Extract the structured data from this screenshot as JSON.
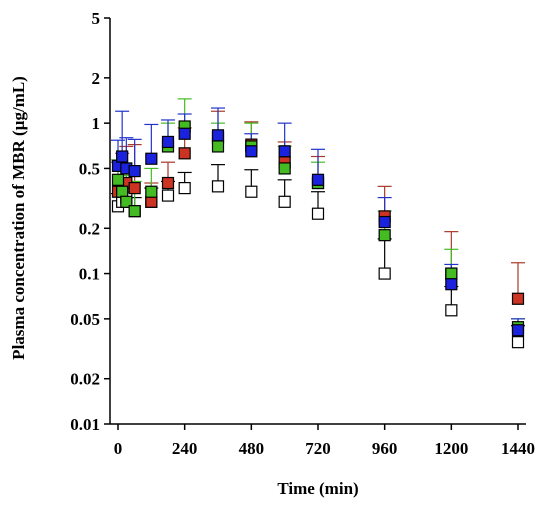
{
  "chart_data": {
    "type": "scatter",
    "title": "",
    "xlabel": "Time (min)",
    "ylabel": "Plasma concentration of  MBR (µg/mL)",
    "x_scale": "linear",
    "y_scale": "log",
    "xlim": [
      -40,
      1480
    ],
    "ylim": [
      0.01,
      5
    ],
    "x_ticks": [
      0,
      240,
      480,
      720,
      960,
      1200,
      1440
    ],
    "x_tick_labels": [
      "0",
      "240",
      "480",
      "720",
      "960",
      "1200",
      "1440"
    ],
    "y_ticks": [
      0.01,
      0.02,
      0.05,
      0.1,
      0.2,
      0.5,
      1,
      2,
      5
    ],
    "y_tick_labels": [
      "0.01",
      "0.02",
      "0.05",
      "0.1",
      "0.2",
      "0.5",
      "1",
      "2",
      "5"
    ],
    "grid": false,
    "legend": "none",
    "series": [
      {
        "color": "#ffffff",
        "edge_color": "#000000",
        "error_color": "#000000",
        "points": [
          {
            "x": 0,
            "y": 0.28,
            "err": 0.06
          },
          {
            "x": 15,
            "y": 0.3,
            "err": 0.07
          },
          {
            "x": 30,
            "y": 0.32,
            "err": 0.07
          },
          {
            "x": 60,
            "y": 0.26,
            "err": 0.06
          },
          {
            "x": 120,
            "y": 0.3,
            "err": 0.07
          },
          {
            "x": 180,
            "y": 0.33,
            "err": 0.08
          },
          {
            "x": 240,
            "y": 0.37,
            "err": 0.1
          },
          {
            "x": 360,
            "y": 0.38,
            "err": 0.15
          },
          {
            "x": 480,
            "y": 0.35,
            "err": 0.14
          },
          {
            "x": 600,
            "y": 0.3,
            "err": 0.12
          },
          {
            "x": 720,
            "y": 0.25,
            "err": 0.1
          },
          {
            "x": 960,
            "y": 0.1,
            "err": 0.07
          },
          {
            "x": 1200,
            "y": 0.057,
            "err": 0.025
          },
          {
            "x": 1440,
            "y": 0.035,
            "err": 0.01
          }
        ]
      },
      {
        "color": "#cc3322",
        "edge_color": "#000000",
        "error_color": "#a83a2a",
        "points": [
          {
            "x": 0,
            "y": 0.35,
            "err": 0.2
          },
          {
            "x": 15,
            "y": 0.38,
            "err": 0.25
          },
          {
            "x": 30,
            "y": 0.4,
            "err": 0.3
          },
          {
            "x": 60,
            "y": 0.37,
            "err": 0.35
          },
          {
            "x": 120,
            "y": 0.3,
            "err": 0.1
          },
          {
            "x": 180,
            "y": 0.4,
            "err": 0.15
          },
          {
            "x": 240,
            "y": 0.63,
            "err": 0.3
          },
          {
            "x": 360,
            "y": 0.8,
            "err": 0.4
          },
          {
            "x": 480,
            "y": 0.72,
            "err": 0.3
          },
          {
            "x": 600,
            "y": 0.55,
            "err": 0.2
          },
          {
            "x": 720,
            "y": 0.4,
            "err": 0.2
          },
          {
            "x": 960,
            "y": 0.24,
            "err": 0.14
          },
          {
            "x": 1200,
            "y": 0.1,
            "err": 0.09
          },
          {
            "x": 1440,
            "y": 0.068,
            "err": 0.05
          }
        ]
      },
      {
        "color": "#44bb22",
        "edge_color": "#000000",
        "error_color": "#44bb22",
        "points": [
          {
            "x": 0,
            "y": 0.42,
            "err": 0.15
          },
          {
            "x": 15,
            "y": 0.35,
            "err": 0.15
          },
          {
            "x": 30,
            "y": 0.3,
            "err": 0.15
          },
          {
            "x": 60,
            "y": 0.26,
            "err": 0.15
          },
          {
            "x": 120,
            "y": 0.35,
            "err": 0.15
          },
          {
            "x": 180,
            "y": 0.7,
            "err": 0.3
          },
          {
            "x": 240,
            "y": 0.95,
            "err": 0.5
          },
          {
            "x": 360,
            "y": 0.7,
            "err": 0.3
          },
          {
            "x": 480,
            "y": 0.7,
            "err": 0.3
          },
          {
            "x": 600,
            "y": 0.5,
            "err": 0.2
          },
          {
            "x": 720,
            "y": 0.4,
            "err": 0.15
          },
          {
            "x": 960,
            "y": 0.18,
            "err": 0.08
          },
          {
            "x": 1200,
            "y": 0.1,
            "err": 0.045
          },
          {
            "x": 1440,
            "y": 0.044,
            "err": 0.006
          }
        ]
      },
      {
        "color": "#1a22dd",
        "edge_color": "#000000",
        "error_color": "#2233cc",
        "points": [
          {
            "x": 0,
            "y": 0.52,
            "err": 0.25
          },
          {
            "x": 15,
            "y": 0.6,
            "err": 0.6
          },
          {
            "x": 30,
            "y": 0.5,
            "err": 0.3
          },
          {
            "x": 60,
            "y": 0.48,
            "err": 0.3
          },
          {
            "x": 120,
            "y": 0.58,
            "err": 0.4
          },
          {
            "x": 180,
            "y": 0.75,
            "err": 0.3
          },
          {
            "x": 240,
            "y": 0.85,
            "err": 0.3
          },
          {
            "x": 360,
            "y": 0.83,
            "err": 0.43
          },
          {
            "x": 480,
            "y": 0.65,
            "err": 0.2
          },
          {
            "x": 600,
            "y": 0.65,
            "err": 0.35
          },
          {
            "x": 720,
            "y": 0.42,
            "err": 0.25
          },
          {
            "x": 960,
            "y": 0.22,
            "err": 0.1
          },
          {
            "x": 1200,
            "y": 0.085,
            "err": 0.03
          },
          {
            "x": 1440,
            "y": 0.042,
            "err": 0.008
          }
        ]
      }
    ]
  }
}
